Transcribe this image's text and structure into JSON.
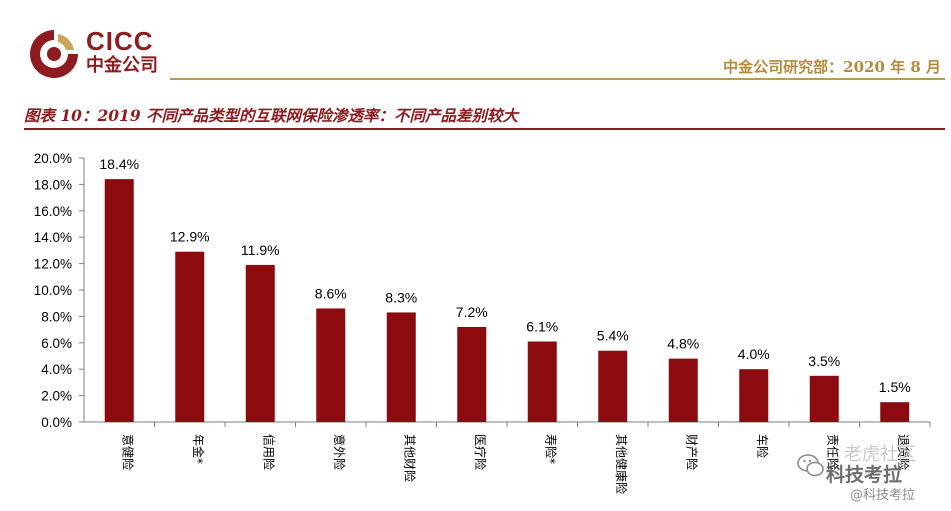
{
  "header": {
    "logo_en": "CICC",
    "logo_zh": "中金公司",
    "department": "中金公司研究部：2020 年 8 月"
  },
  "figure_title": "图表 10：2019 不同产品类型的互联网保险渗透率：不同产品差别较大",
  "watermark": {
    "line1": "老虎社区",
    "line2": "科技考拉",
    "line3": "@科技考拉"
  },
  "colors": {
    "bar": "#8b0b0f",
    "brand": "#8e1b1f",
    "gold": "#b48a3c"
  },
  "chart_data": {
    "type": "bar",
    "categories": [
      "意健险",
      "年金*",
      "信用险",
      "意外险",
      "其他财险",
      "医疗险",
      "寿险*",
      "其他健康险",
      "财产险",
      "车险",
      "责任险",
      "退货险"
    ],
    "values": [
      18.4,
      12.9,
      11.9,
      8.6,
      8.3,
      7.2,
      6.1,
      5.4,
      4.8,
      4.0,
      3.5,
      1.5
    ],
    "data_labels": [
      "18.4%",
      "12.9%",
      "11.9%",
      "8.6%",
      "8.3%",
      "7.2%",
      "6.1%",
      "5.4%",
      "4.8%",
      "4.0%",
      "3.5%",
      "1.5%"
    ],
    "ylim": [
      0,
      20
    ],
    "yticks": [
      "0.0%",
      "2.0%",
      "4.0%",
      "6.0%",
      "8.0%",
      "10.0%",
      "12.0%",
      "14.0%",
      "16.0%",
      "18.0%",
      "20.0%"
    ],
    "title": "",
    "xlabel": "",
    "ylabel": "",
    "grid": false,
    "legend": "none"
  }
}
